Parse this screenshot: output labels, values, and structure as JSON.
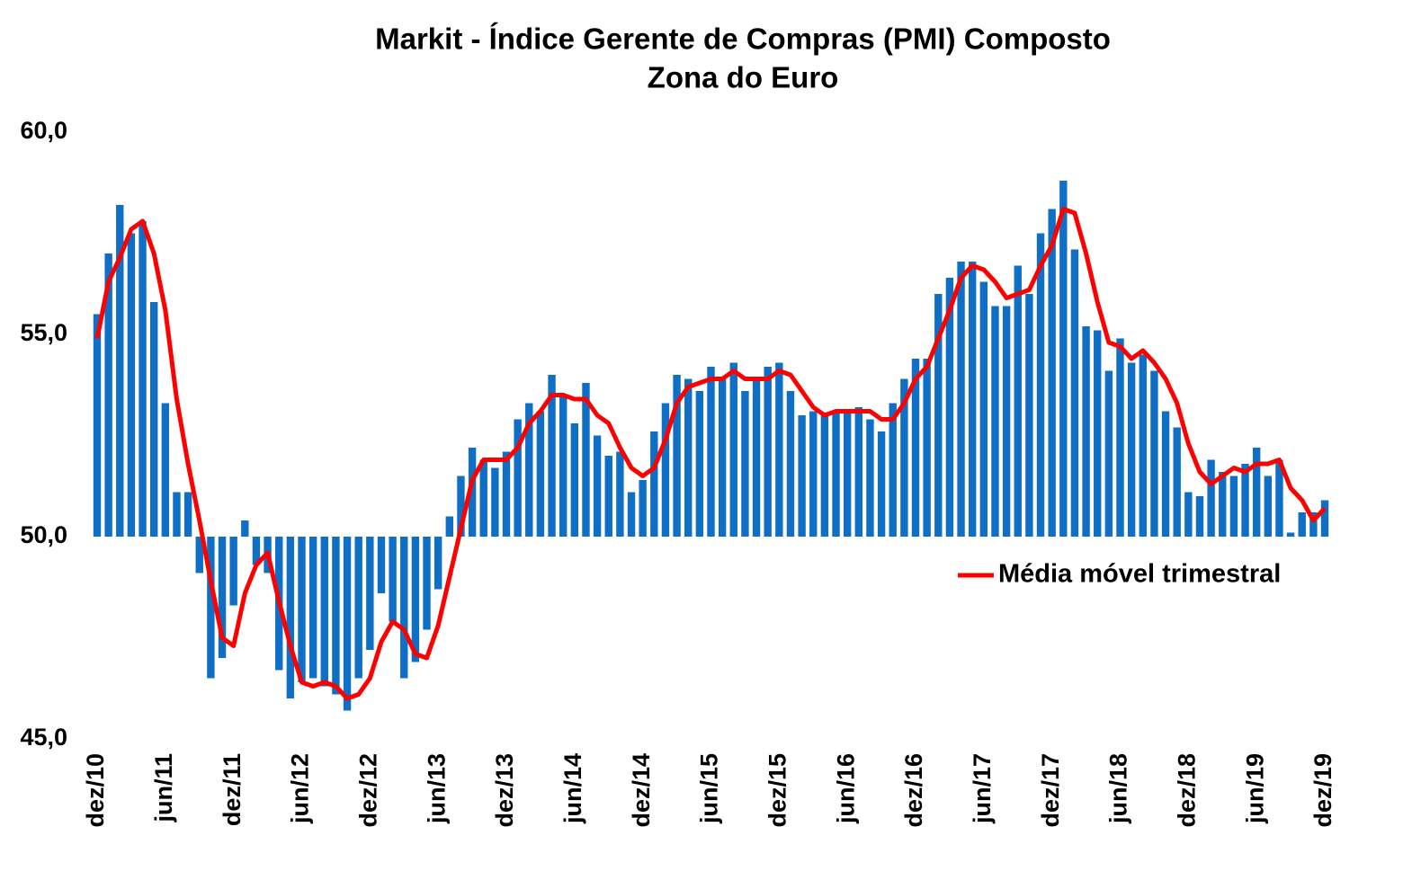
{
  "chart_data": {
    "type": "bar",
    "title": "Markit - Índice Gerente de Compras (PMI) Composto",
    "subtitle": "Zona do Euro",
    "categories": [
      "dez/10",
      null,
      null,
      null,
      null,
      null,
      "jun/11",
      null,
      null,
      null,
      null,
      null,
      "dez/11",
      null,
      null,
      null,
      null,
      null,
      "jun/12",
      null,
      null,
      null,
      null,
      null,
      "dez/12",
      null,
      null,
      null,
      null,
      null,
      "jun/13",
      null,
      null,
      null,
      null,
      null,
      "dez/13",
      null,
      null,
      null,
      null,
      null,
      "jun/14",
      null,
      null,
      null,
      null,
      null,
      "dez/14",
      null,
      null,
      null,
      null,
      null,
      "jun/15",
      null,
      null,
      null,
      null,
      null,
      "dez/15",
      null,
      null,
      null,
      null,
      null,
      "jun/16",
      null,
      null,
      null,
      null,
      null,
      "dez/16",
      null,
      null,
      null,
      null,
      null,
      "jun/17",
      null,
      null,
      null,
      null,
      null,
      "dez/17",
      null,
      null,
      null,
      null,
      null,
      "jun/18",
      null,
      null,
      null,
      null,
      null,
      "dez/18",
      null,
      null,
      null,
      null,
      null,
      "jun/19",
      null,
      null,
      null,
      null,
      null,
      "dez/19"
    ],
    "baseline": 50,
    "series": [
      {
        "type": "bar",
        "color": "#0f6fc6",
        "values": [
          55.5,
          57.0,
          58.2,
          57.5,
          57.8,
          55.8,
          53.3,
          51.1,
          51.1,
          49.1,
          46.5,
          47.0,
          48.3,
          50.4,
          49.3,
          49.1,
          46.7,
          46.0,
          46.4,
          46.5,
          46.3,
          46.1,
          45.7,
          46.5,
          47.2,
          48.6,
          47.9,
          46.5,
          46.9,
          47.7,
          48.7,
          50.5,
          51.5,
          52.2,
          51.9,
          51.7,
          52.1,
          52.9,
          53.3,
          53.1,
          54.0,
          53.5,
          52.8,
          53.8,
          52.5,
          52.0,
          52.1,
          51.1,
          51.4,
          52.6,
          53.3,
          54.0,
          53.9,
          53.6,
          54.2,
          53.9,
          54.3,
          53.6,
          53.9,
          54.2,
          54.3,
          53.6,
          53.0,
          53.1,
          53.0,
          53.1,
          53.1,
          53.2,
          52.9,
          52.6,
          53.3,
          53.9,
          54.4,
          54.4,
          56.0,
          56.4,
          56.8,
          56.8,
          56.3,
          55.7,
          55.7,
          56.7,
          56.0,
          57.5,
          58.1,
          58.8,
          57.1,
          55.2,
          55.1,
          54.1,
          54.9,
          54.3,
          54.5,
          54.1,
          53.1,
          52.7,
          51.1,
          51.0,
          51.9,
          51.6,
          51.5,
          51.8,
          52.2,
          51.5,
          51.9,
          50.1,
          50.6,
          50.6,
          50.9
        ]
      },
      {
        "type": "line",
        "name": "Média móvel trimestral",
        "color": "#ff0000",
        "values": [
          54.9,
          56.3,
          56.9,
          57.6,
          57.8,
          57.0,
          55.6,
          53.4,
          51.8,
          50.4,
          48.9,
          47.5,
          47.3,
          48.6,
          49.3,
          49.6,
          48.4,
          47.3,
          46.4,
          46.3,
          46.4,
          46.3,
          46.0,
          46.1,
          46.5,
          47.4,
          47.9,
          47.7,
          47.1,
          47.0,
          47.8,
          49.0,
          50.2,
          51.4,
          51.9,
          51.9,
          51.9,
          52.2,
          52.8,
          53.1,
          53.5,
          53.5,
          53.4,
          53.4,
          53.0,
          52.8,
          52.2,
          51.7,
          51.5,
          51.7,
          52.4,
          53.3,
          53.7,
          53.8,
          53.9,
          53.9,
          54.1,
          53.9,
          53.9,
          53.9,
          54.1,
          54.0,
          53.6,
          53.2,
          53.0,
          53.1,
          53.1,
          53.1,
          53.1,
          52.9,
          52.9,
          53.3,
          53.9,
          54.2,
          54.9,
          55.6,
          56.4,
          56.7,
          56.6,
          56.3,
          55.9,
          56.0,
          56.1,
          56.7,
          57.2,
          58.1,
          58.0,
          57.0,
          55.8,
          54.8,
          54.7,
          54.4,
          54.6,
          54.3,
          53.9,
          53.3,
          52.3,
          51.6,
          51.3,
          51.5,
          51.7,
          51.6,
          51.8,
          51.8,
          51.9,
          51.2,
          50.9,
          50.4,
          50.7
        ]
      }
    ],
    "ylim": [
      45,
      60
    ],
    "yticks": [
      {
        "value": 45,
        "label": "45,0"
      },
      {
        "value": 50,
        "label": "50,0"
      },
      {
        "value": 55,
        "label": "55,0"
      },
      {
        "value": 60,
        "label": "60,0"
      }
    ],
    "legend": "right",
    "grid": false
  }
}
